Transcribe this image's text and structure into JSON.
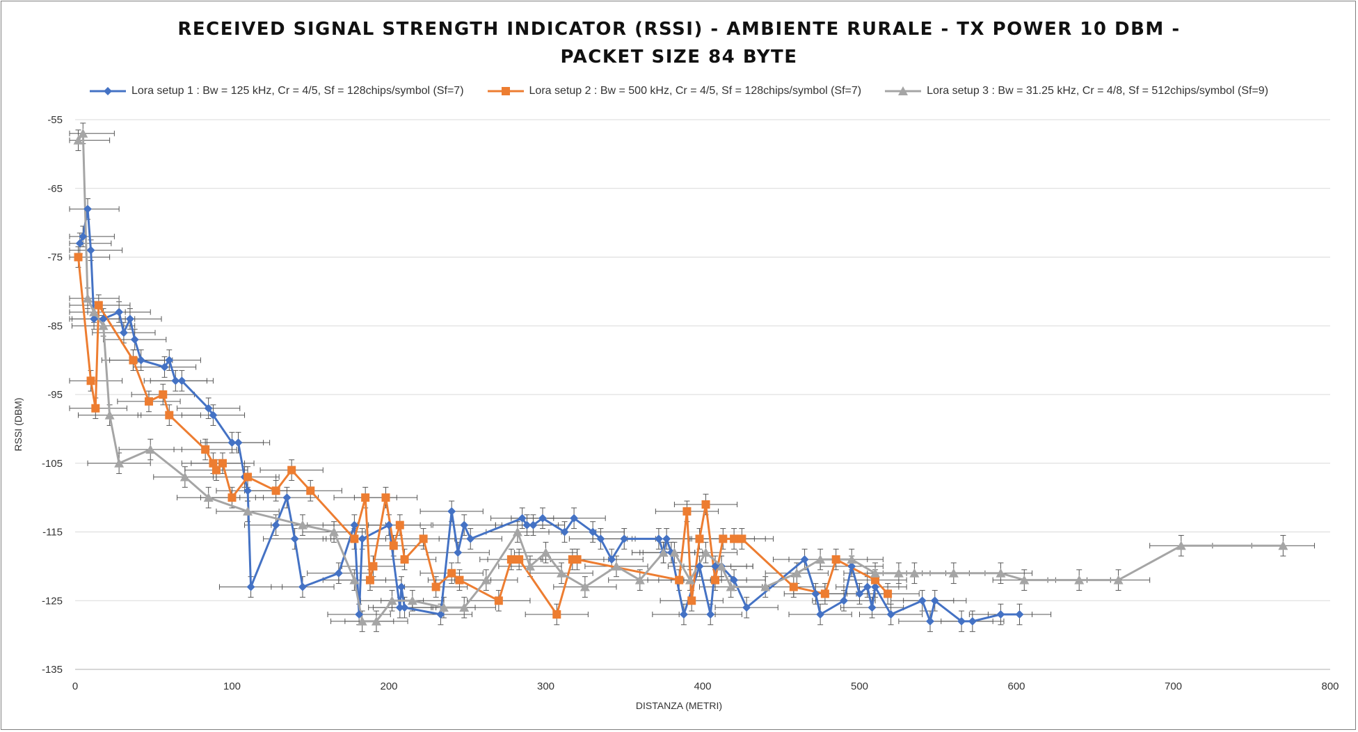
{
  "chart_data": {
    "type": "scatter",
    "title_line1": "RECEIVED SIGNAL STRENGTH INDICATOR (RSSI) - AMBIENTE RURALE - TX POWER 10 DBM -",
    "title_line2": "PACKET SIZE 84 BYTE",
    "xlabel": "DISTANZA (METRI)",
    "ylabel": "RSSI (DBM)",
    "xlim": [
      0,
      800
    ],
    "ylim": [
      -135,
      -55
    ],
    "xticks": [
      0,
      100,
      200,
      300,
      400,
      500,
      600,
      700,
      800
    ],
    "yticks": [
      -55,
      -65,
      -75,
      -85,
      -95,
      -105,
      -115,
      -125,
      -135
    ],
    "grid": "horizontal",
    "legend_position": "top",
    "error_bars": "horizontal ±20 m, vertical ±1.5 dBm",
    "series": [
      {
        "name": "Lora setup 1 : Bw = 125 kHz, Cr = 4/5, Sf = 128chips/symbol (Sf=7)",
        "color": "#4472C4",
        "marker": "diamond",
        "x": [
          3,
          5,
          8,
          10,
          12,
          18,
          28,
          31,
          35,
          38,
          42,
          57,
          60,
          64,
          68,
          85,
          88,
          100,
          104,
          108,
          110,
          112,
          128,
          135,
          140,
          145,
          168,
          178,
          181,
          183,
          200,
          207,
          208,
          210,
          233,
          240,
          244,
          248,
          252,
          285,
          288,
          292,
          298,
          312,
          318,
          330,
          335,
          342,
          350,
          372,
          375,
          377,
          380,
          388,
          398,
          405,
          408,
          412,
          420,
          428,
          465,
          472,
          475,
          490,
          495,
          500,
          505,
          508,
          510,
          520,
          540,
          545,
          548,
          565,
          572,
          590,
          602
        ],
        "y": [
          -73,
          -72,
          -68,
          -74,
          -84,
          -84,
          -83,
          -86,
          -84,
          -87,
          -90,
          -91,
          -90,
          -93,
          -93,
          -97,
          -98,
          -102,
          -102,
          -107,
          -109,
          -123,
          -114,
          -110,
          -116,
          -123,
          -121,
          -114,
          -127,
          -116,
          -114,
          -126,
          -123,
          -126,
          -127,
          -112,
          -118,
          -114,
          -116,
          -113,
          -114,
          -114,
          -113,
          -115,
          -113,
          -115,
          -116,
          -119,
          -116,
          -116,
          -118,
          -116,
          -118,
          -127,
          -120,
          -127,
          -120,
          -120,
          -122,
          -126,
          -119,
          -124,
          -127,
          -125,
          -120,
          -124,
          -123,
          -126,
          -123,
          -127,
          -125,
          -128,
          -125,
          -128,
          -128,
          -127,
          -127
        ]
      },
      {
        "name": "Lora setup 2 : Bw = 500 kHz, Cr = 4/5, Sf = 128chips/symbol (Sf=7)",
        "color": "#ED7D31",
        "marker": "square",
        "x": [
          2,
          10,
          13,
          15,
          37,
          47,
          56,
          60,
          83,
          88,
          90,
          94,
          100,
          110,
          128,
          138,
          150,
          178,
          185,
          188,
          190,
          198,
          203,
          207,
          210,
          222,
          230,
          240,
          245,
          270,
          278,
          283,
          307,
          317,
          320,
          385,
          390,
          393,
          398,
          402,
          408,
          413,
          420,
          425,
          458,
          478,
          485,
          510,
          518
        ],
        "y": [
          -75,
          -93,
          -97,
          -82,
          -90,
          -96,
          -95,
          -98,
          -103,
          -105,
          -106,
          -105,
          -110,
          -107,
          -109,
          -106,
          -109,
          -116,
          -110,
          -122,
          -120,
          -110,
          -117,
          -114,
          -119,
          -116,
          -123,
          -121,
          -122,
          -125,
          -119,
          -119,
          -127,
          -119,
          -119,
          -122,
          -112,
          -125,
          -116,
          -111,
          -122,
          -116,
          -116,
          -116,
          -123,
          -124,
          -119,
          -122,
          -124
        ]
      },
      {
        "name": "Lora setup 3 : Bw = 31.25 kHz, Cr = 4/8, Sf = 512chips/symbol (Sf=9)",
        "color": "#A5A5A5",
        "marker": "triangle",
        "x": [
          2,
          5,
          8,
          12,
          18,
          22,
          28,
          48,
          70,
          85,
          110,
          145,
          165,
          178,
          183,
          192,
          202,
          215,
          235,
          248,
          262,
          282,
          290,
          300,
          310,
          325,
          345,
          360,
          375,
          382,
          392,
          402,
          412,
          418,
          440,
          460,
          475,
          495,
          510,
          525,
          535,
          560,
          590,
          605,
          640,
          665,
          705,
          770
        ],
        "y": [
          -58,
          -57,
          -81,
          -83,
          -85,
          -98,
          -105,
          -103,
          -107,
          -110,
          -112,
          -114,
          -115,
          -122,
          -128,
          -128,
          -125,
          -125,
          -126,
          -126,
          -122,
          -115,
          -120,
          -118,
          -121,
          -123,
          -120,
          -122,
          -118,
          -118,
          -122,
          -118,
          -120,
          -123,
          -123,
          -121,
          -119,
          -119,
          -121,
          -121,
          -121,
          -121,
          -121,
          -122,
          -122,
          -122,
          -117,
          -117
        ]
      }
    ]
  }
}
